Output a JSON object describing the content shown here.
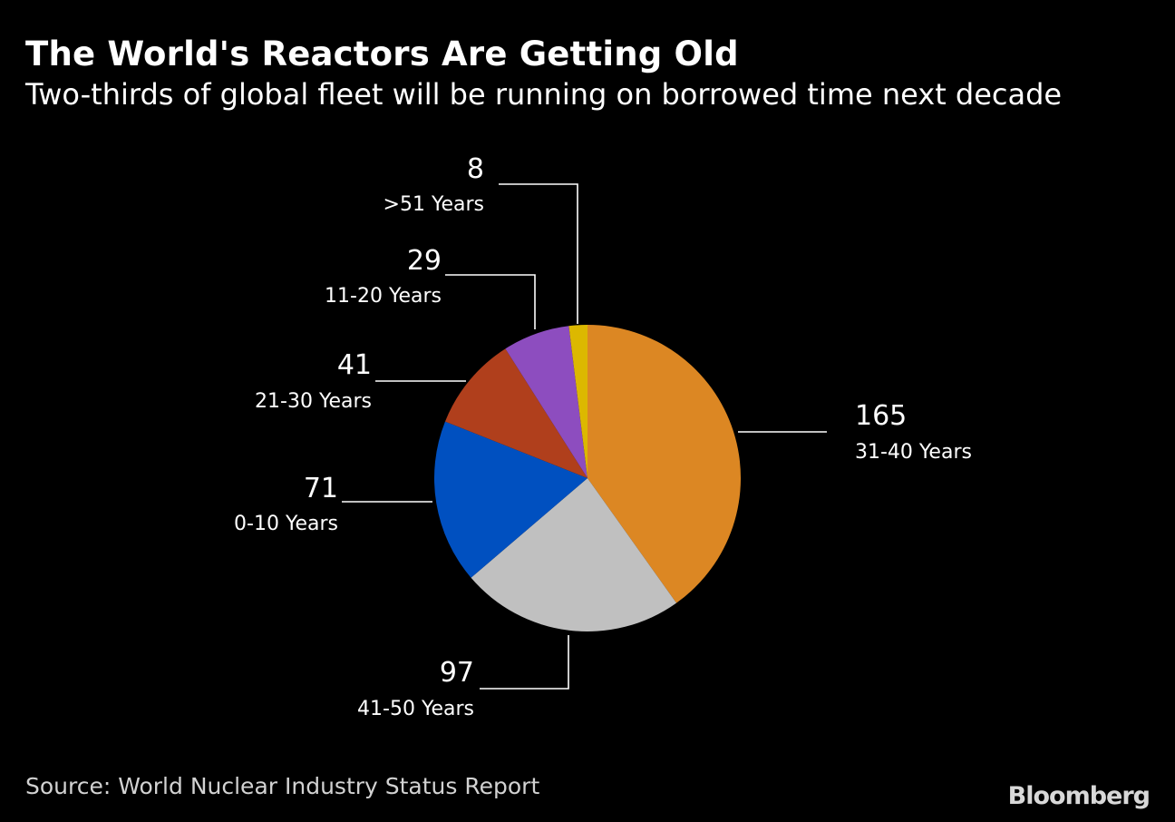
{
  "header": {
    "title": "The World's Reactors Are Getting Old",
    "subtitle": "Two-thirds of global fleet will be running on borrowed time next decade"
  },
  "footer": {
    "source": "Source: World Nuclear Industry Status Report",
    "brand": "Bloomberg"
  },
  "chart_data": {
    "type": "pie",
    "title": "The World's Reactors Are Getting Old",
    "subtitle": "Two-thirds of global fleet will be running on borrowed time next decade",
    "categories": [
      "31-40 Years",
      "41-50 Years",
      "0-10 Years",
      "21-30 Years",
      "11-20 Years",
      ">51 Years"
    ],
    "values": [
      165,
      97,
      71,
      41,
      29,
      8
    ],
    "colors": [
      "#dc8723",
      "#c0c0c0",
      "#0050c0",
      "#b03f1c",
      "#8d4dbf",
      "#dcb800"
    ],
    "start": "12 o'clock",
    "direction": "clockwise"
  }
}
